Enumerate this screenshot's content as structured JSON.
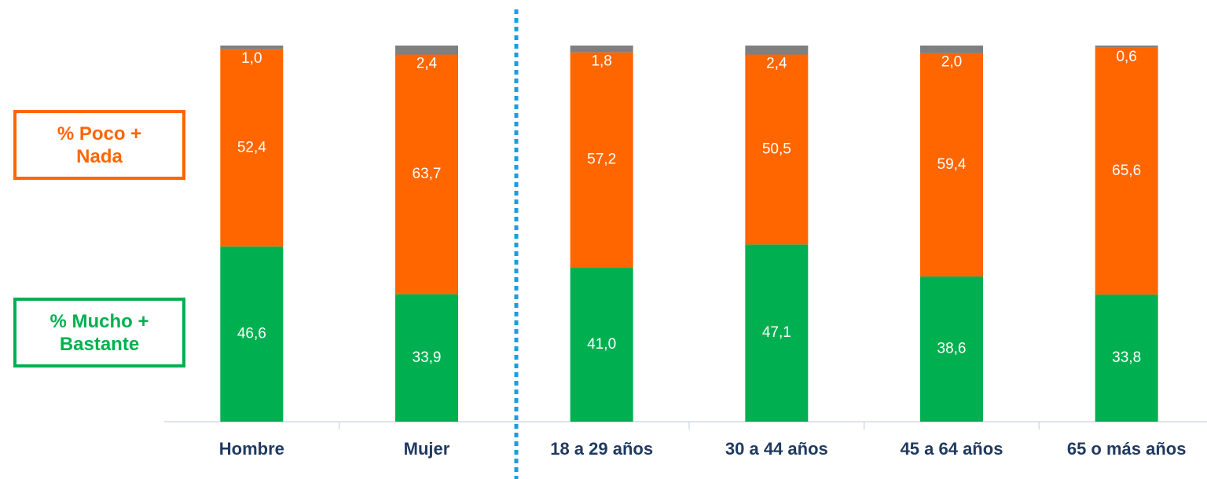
{
  "chart_data": {
    "type": "stacked_bar",
    "categories": [
      "Hombre",
      "Mujer",
      "18 a 29 años",
      "30 a 44 años",
      "45 a 64 años",
      "65 o más años"
    ],
    "series": [
      {
        "name": "% Mucho + Bastante",
        "color": "#00b050",
        "values": [
          46.6,
          33.9,
          41.0,
          47.1,
          38.6,
          33.8
        ],
        "value_labels": [
          "46,6",
          "33,9",
          "41,0",
          "47,1",
          "38,6",
          "33,8"
        ]
      },
      {
        "name": "% Poco + Nada",
        "color": "#ff6600",
        "values": [
          52.4,
          63.7,
          57.2,
          50.5,
          59.4,
          65.6
        ],
        "value_labels": [
          "52,4",
          "63,7",
          "57,2",
          "50,5",
          "59,4",
          "65,6"
        ]
      },
      {
        "color": "#7f7f7f",
        "values": [
          1.0,
          2.4,
          1.8,
          2.4,
          2.0,
          0.6
        ],
        "value_labels": [
          "1,0",
          "2,4",
          "1,8",
          "2,4",
          "2,0",
          "0,6"
        ]
      }
    ],
    "ylim": [
      0,
      100
    ]
  }
}
